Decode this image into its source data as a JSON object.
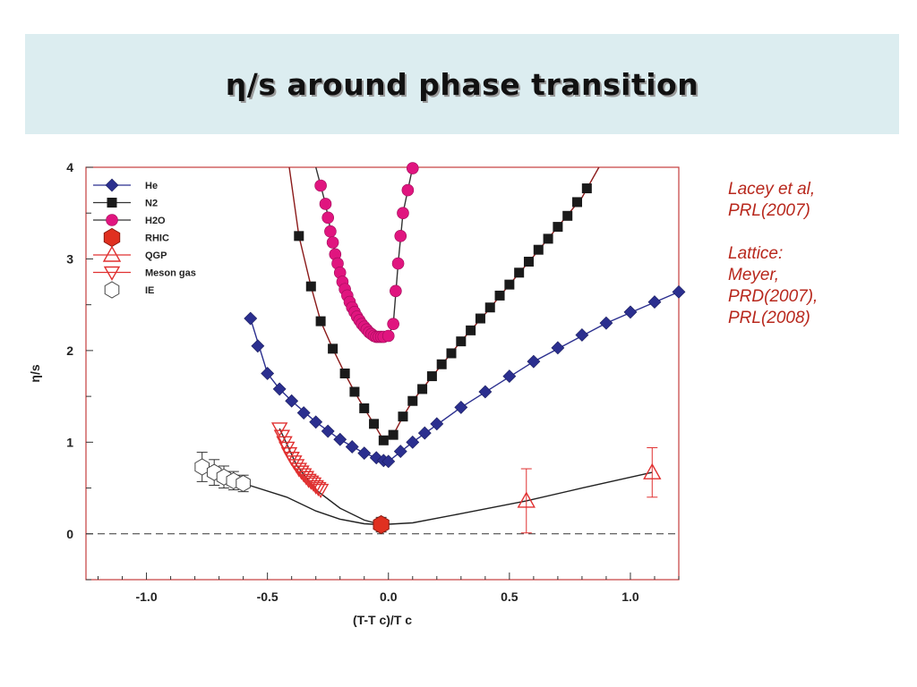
{
  "slide": {
    "title": "η/s around phase transition"
  },
  "citations": {
    "ref1_line1": "Lacey et al,",
    "ref1_line2": "PRL(2007)",
    "ref2_line1": "Lattice:",
    "ref2_line2": "Meyer,",
    "ref2_line3": "PRD(2007),",
    "ref2_line4": "PRL(2008)"
  },
  "colors": {
    "title_band": "#dcedf0",
    "citation_text": "#b8281d",
    "frame": "#c43c3c",
    "he": "#2b2f8f",
    "n2": "#1a1a1a",
    "h2o": "#e0157f",
    "rhic": "#e03020",
    "qgp": "#e03030",
    "meson": "#e03030",
    "ie": "#444444",
    "curve_red": "#8b1a1a"
  },
  "chart_data": {
    "type": "scatter",
    "xlabel": "(T-T c)/T c",
    "ylabel": "η/s",
    "xlim": [
      -1.25,
      1.2
    ],
    "ylim": [
      -0.5,
      4.0
    ],
    "x_ticks": [
      "-1.0",
      "-0.5",
      "0.0",
      "0.5",
      "1.0"
    ],
    "y_ticks": [
      "0",
      "1",
      "2",
      "3",
      "4"
    ],
    "reference_line_y": 0,
    "legend": [
      "He",
      "N2",
      "H2O",
      "RHIC",
      "QGP",
      "Meson gas",
      "IE"
    ],
    "legend_position": "top-left",
    "series": [
      {
        "name": "He",
        "marker": "diamond",
        "x": [
          -0.57,
          -0.54,
          -0.5,
          -0.45,
          -0.4,
          -0.35,
          -0.3,
          -0.25,
          -0.2,
          -0.15,
          -0.1,
          -0.05,
          -0.02,
          0.0,
          0.05,
          0.1,
          0.15,
          0.2,
          0.3,
          0.4,
          0.5,
          0.6,
          0.7,
          0.8,
          0.9,
          1.0,
          1.1,
          1.2
        ],
        "y": [
          2.35,
          2.05,
          1.75,
          1.58,
          1.45,
          1.32,
          1.22,
          1.12,
          1.03,
          0.95,
          0.88,
          0.83,
          0.8,
          0.79,
          0.9,
          1.0,
          1.1,
          1.2,
          1.38,
          1.55,
          1.72,
          1.88,
          2.03,
          2.17,
          2.3,
          2.42,
          2.53,
          2.64
        ]
      },
      {
        "name": "N2",
        "marker": "square",
        "x": [
          -0.37,
          -0.32,
          -0.28,
          -0.23,
          -0.18,
          -0.14,
          -0.1,
          -0.06,
          -0.02,
          0.02,
          0.06,
          0.1,
          0.14,
          0.18,
          0.22,
          0.26,
          0.3,
          0.34,
          0.38,
          0.42,
          0.46,
          0.5,
          0.54,
          0.58,
          0.62,
          0.66,
          0.7,
          0.74,
          0.78,
          0.82
        ],
        "y": [
          3.25,
          2.7,
          2.32,
          2.02,
          1.75,
          1.55,
          1.37,
          1.2,
          1.02,
          1.08,
          1.28,
          1.45,
          1.58,
          1.72,
          1.85,
          1.97,
          2.1,
          2.22,
          2.35,
          2.47,
          2.6,
          2.72,
          2.85,
          2.97,
          3.1,
          3.22,
          3.35,
          3.47,
          3.62,
          3.77
        ]
      },
      {
        "name": "H2O",
        "marker": "circle",
        "x": [
          -0.28,
          -0.26,
          -0.25,
          -0.24,
          -0.23,
          -0.22,
          -0.21,
          -0.2,
          -0.19,
          -0.18,
          -0.17,
          -0.16,
          -0.15,
          -0.14,
          -0.13,
          -0.12,
          -0.11,
          -0.1,
          -0.09,
          -0.08,
          -0.07,
          -0.06,
          -0.05,
          -0.04,
          -0.03,
          -0.02,
          0.0,
          0.02,
          0.03,
          0.04,
          0.05,
          0.06,
          0.08,
          0.1
        ],
        "y": [
          3.8,
          3.6,
          3.45,
          3.3,
          3.18,
          3.05,
          2.95,
          2.85,
          2.75,
          2.67,
          2.6,
          2.53,
          2.47,
          2.42,
          2.37,
          2.33,
          2.29,
          2.26,
          2.23,
          2.2,
          2.18,
          2.16,
          2.15,
          2.15,
          2.15,
          2.15,
          2.16,
          2.29,
          2.65,
          2.95,
          3.25,
          3.5,
          3.75,
          3.99
        ]
      },
      {
        "name": "RHIC",
        "marker": "hexagon-filled",
        "x": [
          -0.03
        ],
        "y": [
          0.1
        ],
        "yerr": [
          0.08
        ]
      },
      {
        "name": "QGP",
        "marker": "triangle-up",
        "x": [
          0.57,
          1.09
        ],
        "y": [
          0.36,
          0.67
        ],
        "yerr": [
          0.35,
          0.27
        ]
      },
      {
        "name": "Meson gas",
        "marker": "triangle-down",
        "x": [
          -0.45,
          -0.44,
          -0.43,
          -0.42,
          -0.41,
          -0.4,
          -0.39,
          -0.38,
          -0.37,
          -0.36,
          -0.35,
          -0.34,
          -0.33,
          -0.32,
          -0.31,
          -0.3,
          -0.29,
          -0.28
        ],
        "y": [
          1.15,
          1.07,
          1.0,
          0.94,
          0.88,
          0.83,
          0.79,
          0.75,
          0.71,
          0.68,
          0.65,
          0.62,
          0.59,
          0.57,
          0.55,
          0.52,
          0.5,
          0.48
        ]
      },
      {
        "name": "IE",
        "marker": "hexagon-open",
        "x": [
          -0.77,
          -0.72,
          -0.68,
          -0.64,
          -0.6
        ],
        "y": [
          0.73,
          0.67,
          0.62,
          0.58,
          0.55
        ],
        "yerr": [
          0.16,
          0.14,
          0.12,
          0.1,
          0.09
        ]
      }
    ],
    "curves": [
      {
        "name": "N2 fit",
        "x": [
          -0.41,
          -0.37,
          -0.32,
          -0.28,
          -0.23,
          -0.18,
          -0.14,
          -0.1,
          -0.06,
          -0.02,
          0.02,
          0.06,
          0.1,
          0.2,
          0.3,
          0.4,
          0.5,
          0.6,
          0.7,
          0.8,
          0.87
        ],
        "y": [
          4.0,
          3.25,
          2.7,
          2.32,
          2.02,
          1.75,
          1.55,
          1.37,
          1.2,
          1.02,
          1.08,
          1.28,
          1.45,
          1.78,
          2.1,
          2.4,
          2.72,
          3.03,
          3.35,
          3.67,
          4.0
        ]
      },
      {
        "name": "He fit",
        "x": [
          -0.57,
          -0.5,
          -0.45,
          -0.4,
          -0.3,
          -0.2,
          -0.1,
          -0.02,
          0.0,
          0.1,
          0.3,
          0.6,
          0.9,
          1.2
        ],
        "y": [
          2.35,
          1.75,
          1.58,
          1.45,
          1.22,
          1.03,
          0.88,
          0.8,
          0.79,
          1.0,
          1.38,
          1.88,
          2.3,
          2.64
        ]
      },
      {
        "name": "H2O fit",
        "x": [
          -0.3,
          -0.26,
          -0.22,
          -0.18,
          -0.14,
          -0.1,
          -0.06,
          -0.02,
          0.0,
          0.02,
          0.04,
          0.06,
          0.1
        ],
        "y": [
          4.0,
          3.6,
          3.05,
          2.67,
          2.42,
          2.26,
          2.16,
          2.15,
          2.16,
          2.29,
          2.95,
          3.5,
          4.0
        ]
      },
      {
        "name": "theory",
        "x": [
          -0.77,
          -0.6,
          -0.42,
          -0.3,
          -0.2,
          -0.1,
          -0.03,
          0.1,
          0.3,
          0.57,
          0.8,
          1.09
        ],
        "y": [
          0.73,
          0.55,
          0.4,
          0.25,
          0.16,
          0.11,
          0.1,
          0.12,
          0.22,
          0.36,
          0.5,
          0.67
        ]
      },
      {
        "name": "meson fit",
        "x": [
          -0.45,
          -0.38,
          -0.3,
          -0.2,
          -0.1,
          -0.03
        ],
        "y": [
          1.15,
          0.75,
          0.48,
          0.28,
          0.15,
          0.1
        ]
      }
    ]
  }
}
